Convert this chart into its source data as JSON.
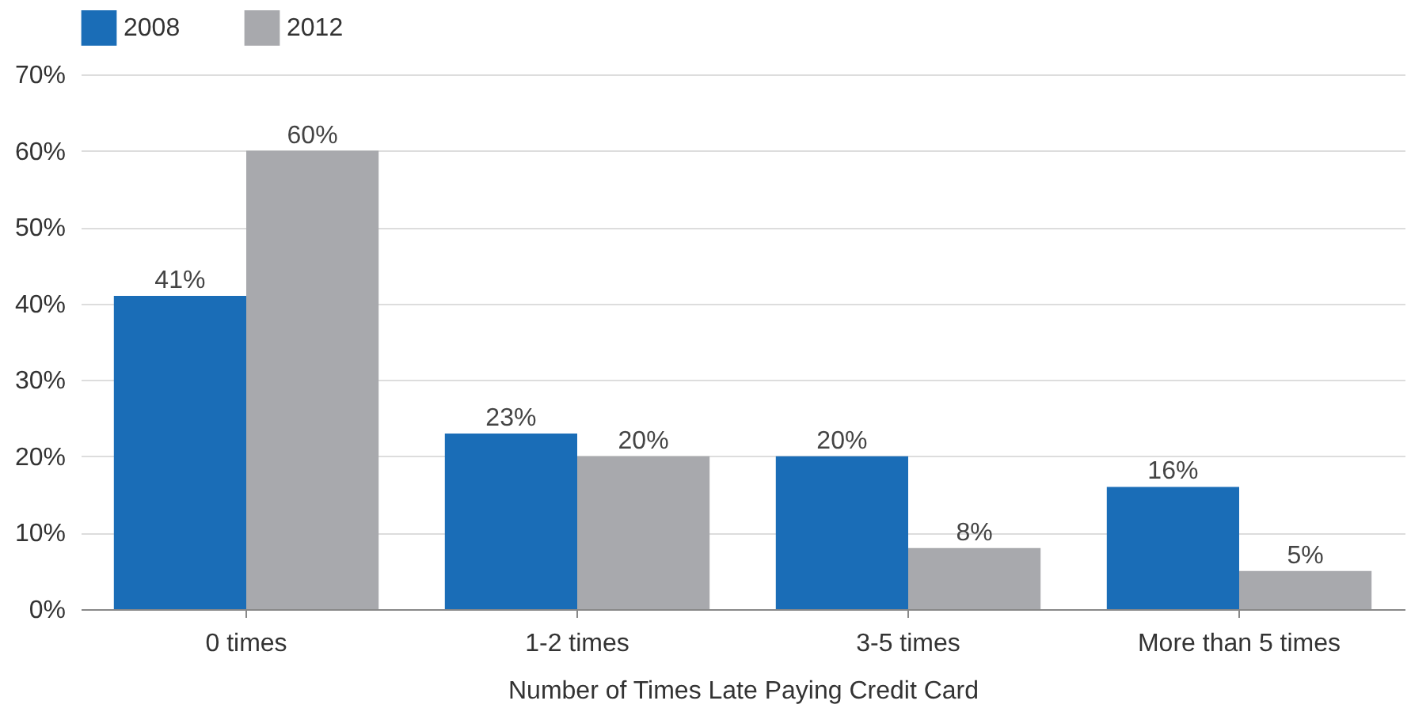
{
  "chart_data": {
    "type": "bar",
    "xlabel": "Number of Times Late Paying Credit Card",
    "categories": [
      "0 times",
      "1-2 times",
      "3-5 times",
      "More than 5 times"
    ],
    "series": [
      {
        "name": "2008",
        "color": "#1a6db7",
        "values": [
          41,
          23,
          20,
          16
        ],
        "value_labels": [
          "41%",
          "23%",
          "20%",
          "16%"
        ]
      },
      {
        "name": "2012",
        "color": "#a8a9ad",
        "values": [
          60,
          20,
          8,
          5
        ],
        "value_labels": [
          "60%",
          "20%",
          "8%",
          "5%"
        ]
      }
    ],
    "ylim": [
      0,
      70
    ],
    "yticks": [
      {
        "value": 0,
        "label": "0%"
      },
      {
        "value": 10,
        "label": "10%"
      },
      {
        "value": 20,
        "label": "20%"
      },
      {
        "value": 30,
        "label": "30%"
      },
      {
        "value": 40,
        "label": "40%"
      },
      {
        "value": 50,
        "label": "50%"
      },
      {
        "value": 60,
        "label": "60%"
      },
      {
        "value": 70,
        "label": "70%"
      }
    ],
    "grid": "y",
    "legend": "top left"
  }
}
